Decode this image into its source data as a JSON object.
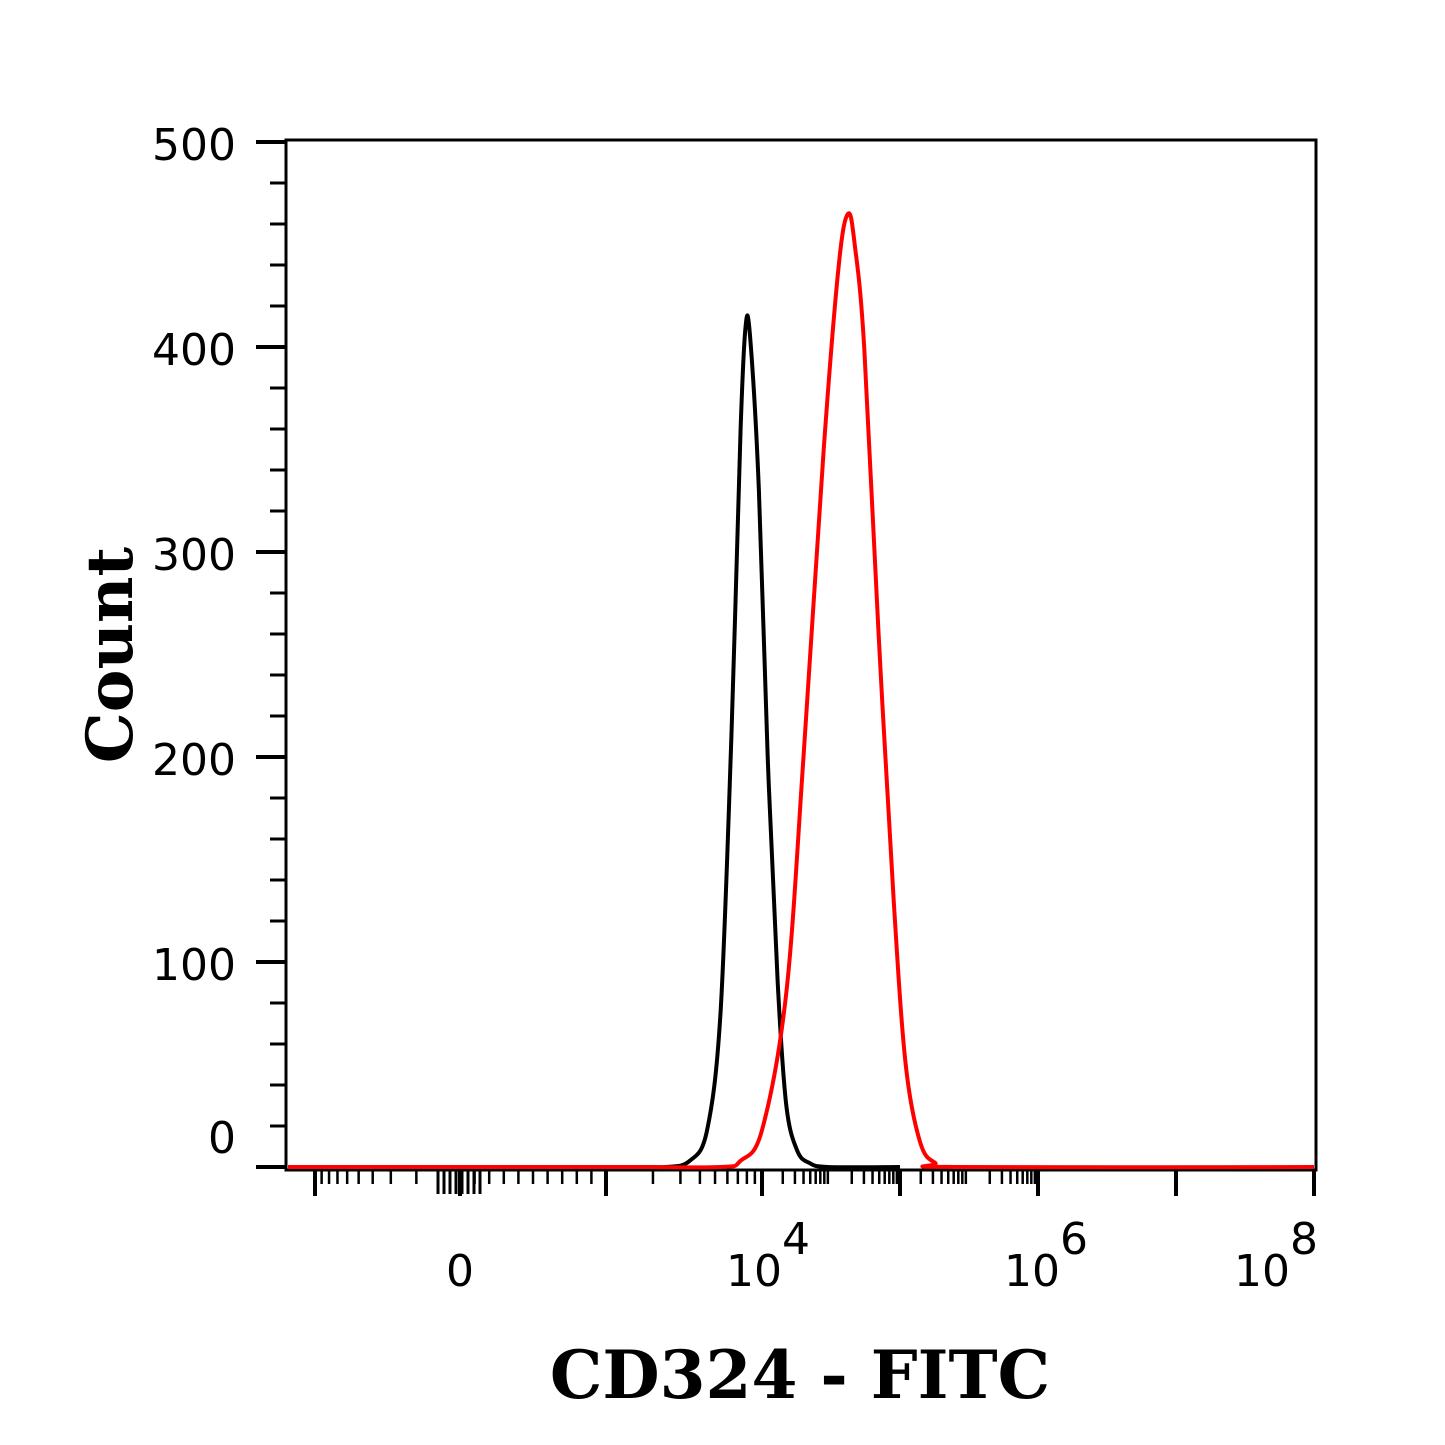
{
  "chart_data": {
    "type": "line",
    "title": "",
    "xlabel": "CD324 - FITC",
    "ylabel": "Count",
    "x_scale": "biexponential (log above ~10^3)",
    "xlim_labels": [
      "0",
      "10",
      "10",
      "10"
    ],
    "x_tick_labels": [
      {
        "base": "0",
        "exp": ""
      },
      {
        "base": "10",
        "exp": "4"
      },
      {
        "base": "10",
        "exp": "6"
      },
      {
        "base": "10",
        "exp": "8"
      }
    ],
    "y_ticks": [
      "0",
      "100",
      "200",
      "300",
      "400",
      "500"
    ],
    "ylim": [
      0,
      500
    ],
    "grid": false,
    "legend": "none",
    "series": [
      {
        "color": "#000000",
        "points": [
          {
            "x": 1000,
            "y": 0
          },
          {
            "x": 2000,
            "y": 0
          },
          {
            "x": 3000,
            "y": 3
          },
          {
            "x": 4000,
            "y": 18
          },
          {
            "x": 5000,
            "y": 75
          },
          {
            "x": 6000,
            "y": 210
          },
          {
            "x": 7000,
            "y": 360
          },
          {
            "x": 7600,
            "y": 410
          },
          {
            "x": 8200,
            "y": 405
          },
          {
            "x": 9500,
            "y": 330
          },
          {
            "x": 11000,
            "y": 200
          },
          {
            "x": 13000,
            "y": 90
          },
          {
            "x": 15000,
            "y": 30
          },
          {
            "x": 18000,
            "y": 8
          },
          {
            "x": 22000,
            "y": 2
          },
          {
            "x": 30000,
            "y": 0
          },
          {
            "x": 100000,
            "y": 0
          }
        ]
      },
      {
        "color": "#ff0000",
        "points": [
          {
            "x": 1000,
            "y": 0
          },
          {
            "x": 5000,
            "y": 0
          },
          {
            "x": 7000,
            "y": 3
          },
          {
            "x": 10000,
            "y": 18
          },
          {
            "x": 15000,
            "y": 85
          },
          {
            "x": 20000,
            "y": 200
          },
          {
            "x": 28000,
            "y": 350
          },
          {
            "x": 36000,
            "y": 440
          },
          {
            "x": 42000,
            "y": 465
          },
          {
            "x": 47000,
            "y": 450
          },
          {
            "x": 55000,
            "y": 400
          },
          {
            "x": 70000,
            "y": 260
          },
          {
            "x": 90000,
            "y": 130
          },
          {
            "x": 110000,
            "y": 50
          },
          {
            "x": 140000,
            "y": 12
          },
          {
            "x": 180000,
            "y": 2
          },
          {
            "x": 250000,
            "y": 0
          },
          {
            "x": 100000000,
            "y": 0
          }
        ]
      }
    ]
  }
}
